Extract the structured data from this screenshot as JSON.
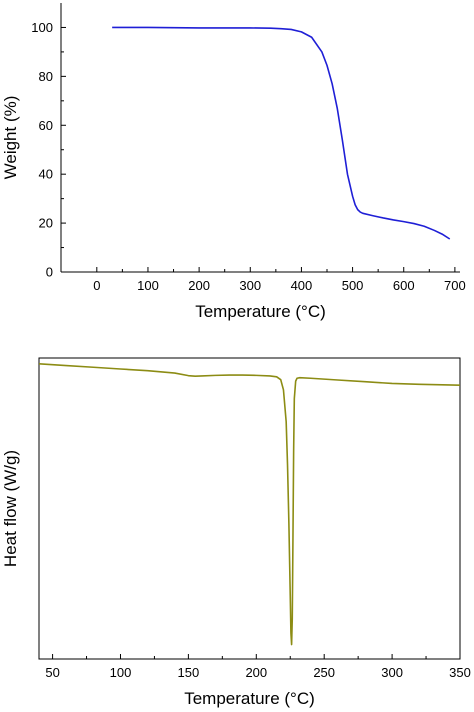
{
  "chart_data": [
    {
      "type": "line",
      "xlabel": "Temperature (°C)",
      "ylabel": "Weight (%)",
      "xlim": [
        -70,
        710
      ],
      "ylim": [
        0,
        110
      ],
      "xticks": [
        0,
        100,
        200,
        300,
        400,
        500,
        600,
        700
      ],
      "yticks": [
        0,
        20,
        40,
        60,
        80,
        100
      ],
      "grid": false,
      "color": "#1f1fd6",
      "series": [
        {
          "x": [
            30,
            100,
            200,
            300,
            340,
            360,
            380,
            400,
            420,
            440,
            450,
            460,
            470,
            480,
            490,
            500,
            505,
            510,
            515,
            520,
            540,
            560,
            580,
            600,
            620,
            640,
            660,
            675,
            690
          ],
          "y": [
            100,
            100,
            99.8,
            99.8,
            99.7,
            99.5,
            99.2,
            98.2,
            96,
            90,
            84.5,
            77,
            67,
            54,
            40,
            31,
            27.5,
            25.5,
            24.5,
            24,
            23,
            22.1,
            21.3,
            20.6,
            19.8,
            18.7,
            17,
            15.5,
            13.5
          ]
        }
      ]
    },
    {
      "type": "line",
      "xlabel": "Temperature (°C)",
      "ylabel": "Heat flow (W/g)",
      "xlim": [
        40,
        350
      ],
      "ylim": [
        -1.02,
        0.02
      ],
      "xticks": [
        50,
        100,
        150,
        200,
        250,
        300,
        350
      ],
      "y_tick_labels": "none",
      "grid": false,
      "color": "#8c8c14",
      "series": [
        {
          "x": [
            40,
            60,
            80,
            100,
            120,
            140,
            150,
            155,
            160,
            170,
            180,
            190,
            200,
            210,
            215,
            218,
            220,
            222,
            223,
            224,
            225,
            225.5,
            226,
            226.5,
            227,
            227.5,
            228,
            229,
            230,
            232,
            240,
            260,
            280,
            300,
            320,
            350
          ],
          "y": [
            0,
            -0.006,
            -0.012,
            -0.018,
            -0.024,
            -0.032,
            -0.041,
            -0.043,
            -0.042,
            -0.04,
            -0.039,
            -0.039,
            -0.04,
            -0.042,
            -0.045,
            -0.055,
            -0.09,
            -0.2,
            -0.35,
            -0.55,
            -0.8,
            -0.93,
            -0.97,
            -0.88,
            -0.6,
            -0.3,
            -0.12,
            -0.06,
            -0.05,
            -0.048,
            -0.05,
            -0.056,
            -0.062,
            -0.068,
            -0.071,
            -0.074
          ]
        }
      ]
    }
  ]
}
